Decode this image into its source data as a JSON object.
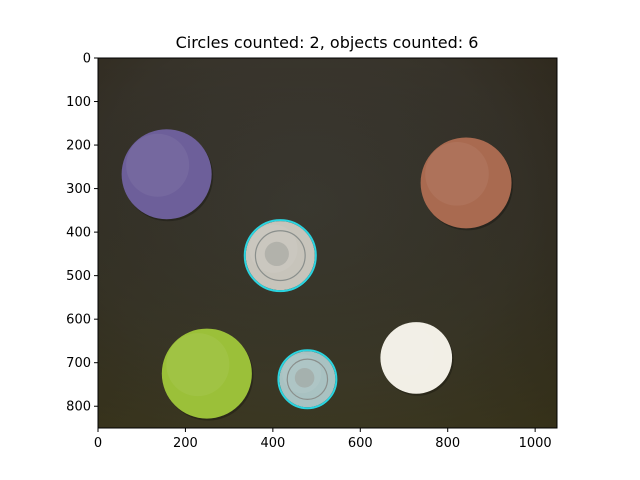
{
  "chart_data": {
    "type": "image",
    "title": "Circles counted: 2, objects counted: 6",
    "xlabel": "",
    "ylabel": "",
    "xlim": [
      0,
      1050
    ],
    "ylim": [
      850,
      0
    ],
    "x_ticks": [
      "0",
      "200",
      "400",
      "600",
      "800",
      "1000"
    ],
    "y_ticks": [
      "0",
      "100",
      "200",
      "300",
      "400",
      "500",
      "600",
      "700",
      "800"
    ],
    "x_tick_values": [
      0,
      200,
      400,
      600,
      800,
      1000
    ],
    "y_tick_values": [
      0,
      100,
      200,
      300,
      400,
      500,
      600,
      700,
      800
    ],
    "grid": false,
    "background_color": "#3a3628",
    "detected_circle_color": "#2ad4e0",
    "objects": [
      {
        "name": "purple disc",
        "cx": 157,
        "cy": 267,
        "r": 103,
        "color": "#6d5f9a",
        "detected": false
      },
      {
        "name": "orange disc",
        "cx": 842,
        "cy": 287,
        "r": 104,
        "color": "#a96a50",
        "detected": false
      },
      {
        "name": "coin large",
        "cx": 417,
        "cy": 454,
        "r": 79,
        "color": "#c7c4bb",
        "detected": true
      },
      {
        "name": "green disc",
        "cx": 249,
        "cy": 725,
        "r": 103,
        "color": "#9bc039",
        "detected": false
      },
      {
        "name": "coin small",
        "cx": 479,
        "cy": 738,
        "r": 64,
        "color": "#a9c2c2",
        "detected": true
      },
      {
        "name": "white disc",
        "cx": 728,
        "cy": 689,
        "r": 82,
        "color": "#f2efe6",
        "detected": false
      }
    ]
  }
}
